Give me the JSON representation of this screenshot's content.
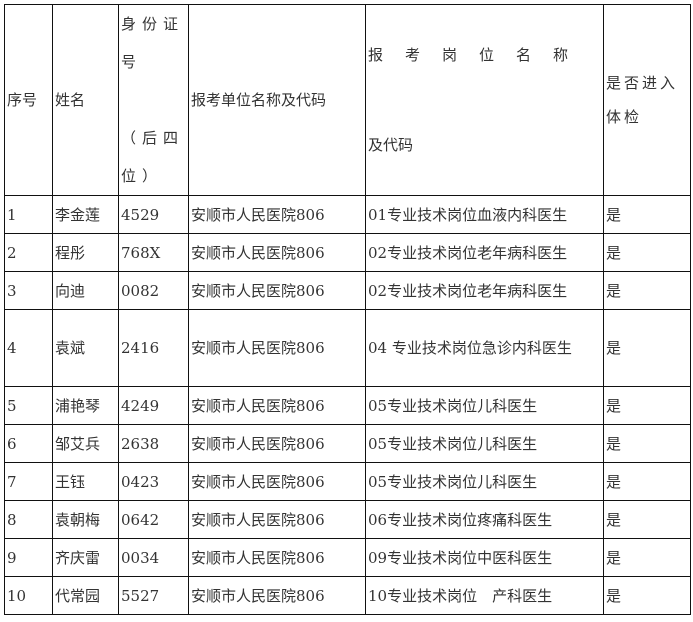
{
  "table": {
    "headers": {
      "seq": "序号",
      "name": "姓名",
      "id_line1": "身份证",
      "id_line2": "号",
      "id_line3": "（后四",
      "id_line4": "位）",
      "unit": "报考单位名称及代码",
      "post_line1": "报考岗位名称",
      "post_line2": "及代码",
      "check": "是否进入体检"
    },
    "rows": [
      {
        "seq": "1",
        "name": "李金莲",
        "id": "4529",
        "unit": "安顺市人民医院806",
        "post": "01专业技术岗位血液内科医生",
        "check": "是"
      },
      {
        "seq": "2",
        "name": "程彤",
        "id": "768X",
        "unit": "安顺市人民医院806",
        "post": "02专业技术岗位老年病科医生",
        "check": "是"
      },
      {
        "seq": "3",
        "name": "向迪",
        "id": "0082",
        "unit": "安顺市人民医院806",
        "post": "02专业技术岗位老年病科医生",
        "check": "是"
      },
      {
        "seq": "4",
        "name": "袁斌",
        "id": "2416",
        "unit": "安顺市人民医院806",
        "post": "04 专业技术岗位急诊内科医生",
        "check": "是"
      },
      {
        "seq": "5",
        "name": "浦艳琴",
        "id": "4249",
        "unit": "安顺市人民医院806",
        "post": "05专业技术岗位儿科医生",
        "check": "是"
      },
      {
        "seq": "6",
        "name": "邹艾兵",
        "id": "2638",
        "unit": "安顺市人民医院806",
        "post": "05专业技术岗位儿科医生",
        "check": "是"
      },
      {
        "seq": "7",
        "name": "王钰",
        "id": "0423",
        "unit": "安顺市人民医院806",
        "post": "05专业技术岗位儿科医生",
        "check": "是"
      },
      {
        "seq": "8",
        "name": "袁朝梅",
        "id": "0642",
        "unit": "安顺市人民医院806",
        "post": "06专业技术岗位疼痛科医生",
        "check": "是"
      },
      {
        "seq": "9",
        "name": "齐庆雷",
        "id": "0034",
        "unit": "安顺市人民医院806",
        "post": "09专业技术岗位中医科医生",
        "check": "是"
      },
      {
        "seq": "10",
        "name": "代常园",
        "id": "5527",
        "unit": "安顺市人民医院806",
        "post": "10专业技术岗位　产科医生",
        "check": "是"
      }
    ]
  }
}
